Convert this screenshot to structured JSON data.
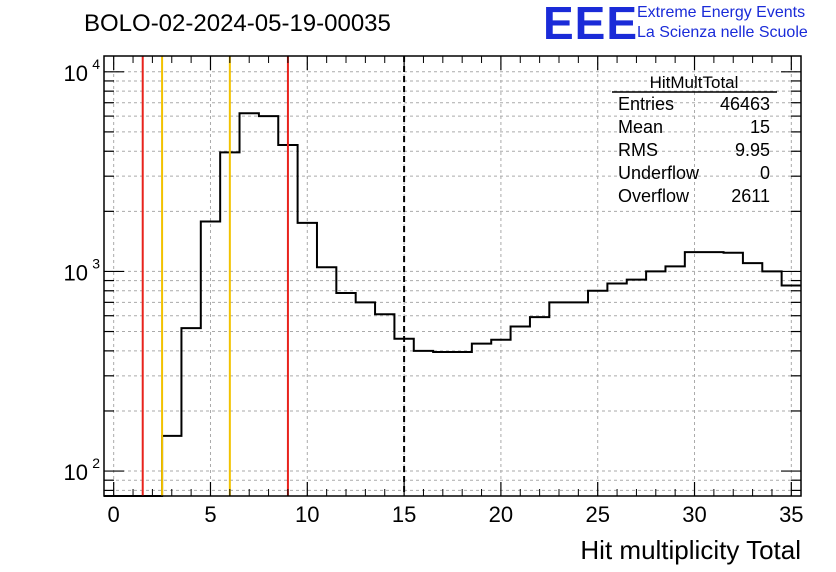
{
  "header": {
    "title": "BOLO-02-2024-05-19-00035",
    "logo_mark": "EEE",
    "logo_line1": "Extreme Energy Events",
    "logo_line2": "La Scienza nelle Scuole",
    "logo_color": "#1a2bd8"
  },
  "stats_box": {
    "name": "HitMultTotal",
    "rows": [
      {
        "label": "Entries",
        "value": "46463"
      },
      {
        "label": "Mean",
        "value": "15"
      },
      {
        "label": "RMS",
        "value": "9.95"
      },
      {
        "label": "Underflow",
        "value": "0"
      },
      {
        "label": "Overflow",
        "value": "2611"
      }
    ]
  },
  "chart_data": {
    "type": "histogram",
    "title": "BOLO-02-2024-05-19-00035",
    "xlabel": "Hit multiplicity Total",
    "ylabel": "",
    "xlim": [
      -0.5,
      35.5
    ],
    "ylim": [
      75,
      12000
    ],
    "log_y": true,
    "grid": true,
    "x_ticks": [
      0,
      5,
      10,
      15,
      20,
      25,
      30,
      35
    ],
    "x_tick_labels": [
      "0",
      "5",
      "10",
      "15",
      "20",
      "25",
      "30",
      "35"
    ],
    "y_ticks": [
      100,
      1000,
      10000
    ],
    "y_tick_bases": [
      "10",
      "10",
      "10"
    ],
    "y_tick_exps": [
      "2",
      "3",
      "4"
    ],
    "bin_edges_start": -0.5,
    "bin_width": 1,
    "counts": [
      0,
      0,
      0,
      150,
      520,
      1780,
      3950,
      6200,
      6000,
      4300,
      1750,
      1050,
      780,
      700,
      610,
      460,
      400,
      395,
      395,
      435,
      455,
      530,
      590,
      700,
      700,
      800,
      870,
      910,
      1000,
      1060,
      1250,
      1250,
      1240,
      1100,
      1000,
      850
    ],
    "vertical_lines": [
      {
        "x": 1.5,
        "color": "#e8231c",
        "style": "solid"
      },
      {
        "x": 2.5,
        "color": "#f2c200",
        "style": "solid"
      },
      {
        "x": 6.0,
        "color": "#f2c200",
        "style": "solid"
      },
      {
        "x": 9.0,
        "color": "#e8231c",
        "style": "solid"
      },
      {
        "x": 15.0,
        "color": "#000000",
        "style": "dashed"
      }
    ]
  }
}
